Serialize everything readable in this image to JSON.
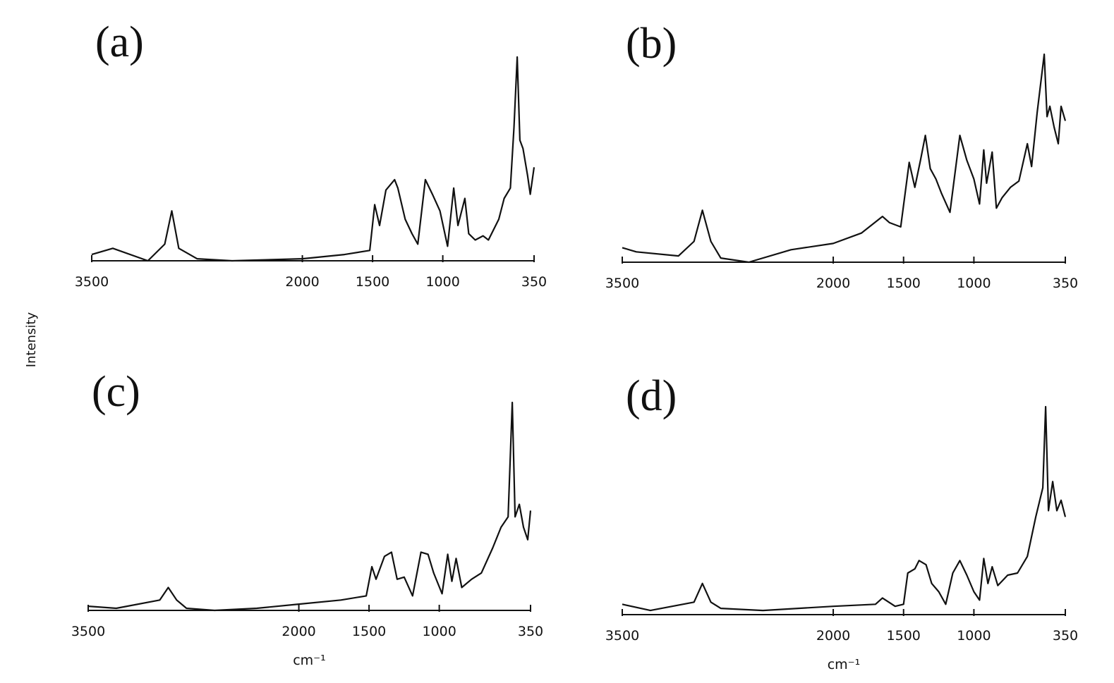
{
  "ylabel": "Intensity",
  "chart_data": [
    {
      "type": "line",
      "title": "(a)",
      "color": "#111111",
      "xlim": [
        3500,
        350
      ],
      "xticks": [
        3500,
        2000,
        1500,
        1000,
        350
      ],
      "ylim": [
        0,
        100
      ],
      "x": [
        3500,
        3350,
        3100,
        2980,
        2930,
        2880,
        2750,
        2500,
        2000,
        1700,
        1520,
        1485,
        1450,
        1405,
        1343,
        1320,
        1268,
        1219,
        1178,
        1124,
        1074,
        1020,
        966,
        922,
        892,
        843,
        815,
        769,
        713,
        675,
        601,
        563,
        519,
        493,
        470,
        451,
        429,
        396,
        377,
        350
      ],
      "values": [
        3,
        6,
        0,
        8,
        24,
        6,
        1,
        0,
        1,
        3,
        5,
        27,
        17,
        34,
        39,
        35,
        20,
        13,
        8,
        39,
        32,
        24,
        7,
        35,
        17,
        30,
        13,
        10,
        12,
        10,
        20,
        30,
        35,
        64,
        98,
        58,
        54,
        41,
        32,
        45
      ]
    },
    {
      "type": "line",
      "title": "(b)",
      "color": "#111111",
      "xlim": [
        3500,
        350
      ],
      "xticks": [
        3500,
        2000,
        1500,
        1000,
        350
      ],
      "ylim": [
        0,
        100
      ],
      "x": [
        3500,
        3400,
        3100,
        2990,
        2930,
        2870,
        2800,
        2600,
        2300,
        2000,
        1800,
        1650,
        1600,
        1520,
        1460,
        1420,
        1380,
        1345,
        1310,
        1270,
        1230,
        1170,
        1100,
        1050,
        1000,
        960,
        930,
        910,
        870,
        840,
        800,
        740,
        680,
        620,
        590,
        550,
        500,
        480,
        460,
        430,
        400,
        380,
        350
      ],
      "values": [
        7,
        5,
        3,
        10,
        25,
        10,
        2,
        0,
        6,
        9,
        14,
        22,
        19,
        17,
        48,
        36,
        49,
        61,
        45,
        40,
        33,
        24,
        61,
        49,
        40,
        28,
        54,
        38,
        53,
        26,
        31,
        36,
        39,
        57,
        46,
        72,
        100,
        70,
        75,
        65,
        57,
        75,
        68
      ]
    },
    {
      "type": "line",
      "title": "(c)",
      "color": "#111111",
      "xlabel": "cm⁻¹",
      "xlim": [
        3500,
        350
      ],
      "xticks": [
        3500,
        2000,
        1500,
        1000,
        350
      ],
      "ylim": [
        0,
        100
      ],
      "x": [
        3500,
        3300,
        2990,
        2930,
        2870,
        2800,
        2600,
        2300,
        2000,
        1700,
        1520,
        1480,
        1450,
        1390,
        1340,
        1300,
        1250,
        1190,
        1130,
        1080,
        1040,
        980,
        940,
        910,
        880,
        840,
        770,
        700,
        620,
        560,
        510,
        480,
        460,
        430,
        400,
        370,
        350
      ],
      "values": [
        2,
        1,
        5,
        11,
        5,
        1,
        0,
        1,
        3,
        5,
        7,
        21,
        15,
        26,
        28,
        15,
        16,
        7,
        28,
        27,
        18,
        8,
        27,
        14,
        25,
        11,
        15,
        18,
        30,
        40,
        45,
        100,
        45,
        51,
        40,
        34,
        48
      ]
    },
    {
      "type": "line",
      "title": "(d)",
      "color": "#111111",
      "xlabel": "cm⁻¹",
      "xlim": [
        3500,
        350
      ],
      "xticks": [
        3500,
        2000,
        1500,
        1000,
        350
      ],
      "ylim": [
        0,
        100
      ],
      "x": [
        3500,
        3300,
        2990,
        2930,
        2870,
        2800,
        2500,
        2000,
        1700,
        1650,
        1560,
        1500,
        1470,
        1420,
        1390,
        1340,
        1300,
        1250,
        1200,
        1150,
        1100,
        1050,
        1000,
        960,
        930,
        900,
        870,
        830,
        760,
        690,
        620,
        560,
        510,
        490,
        470,
        440,
        410,
        380,
        350
      ],
      "values": [
        5,
        2,
        6,
        15,
        6,
        3,
        2,
        4,
        5,
        8,
        4,
        5,
        20,
        22,
        26,
        24,
        15,
        11,
        5,
        20,
        26,
        19,
        11,
        7,
        27,
        15,
        23,
        14,
        19,
        20,
        28,
        47,
        61,
        100,
        50,
        64,
        50,
        55,
        47
      ]
    }
  ]
}
